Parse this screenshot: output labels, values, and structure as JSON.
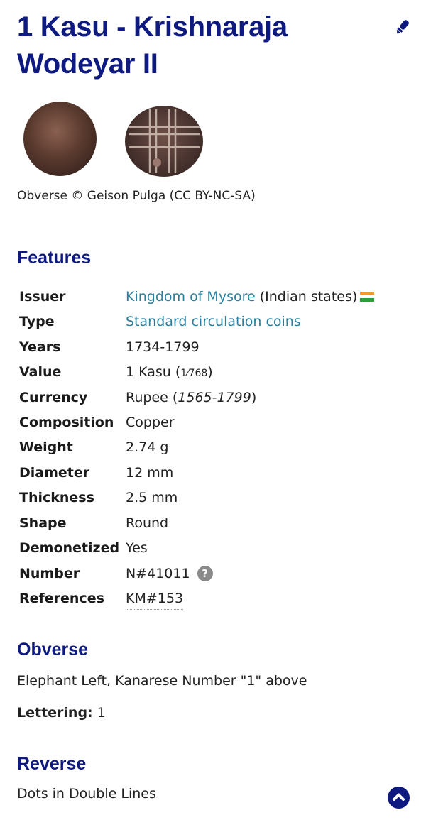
{
  "title": "1 Kasu - Krishnaraja Wodeyar II",
  "image_caption": "Obverse © Geison Pulga (CC BY-NC-SA)",
  "features": {
    "heading": "Features",
    "issuer": {
      "label": "Issuer",
      "link": "Kingdom of Mysore",
      "suffix": " (Indian states)"
    },
    "type": {
      "label": "Type",
      "link": "Standard circulation coins"
    },
    "years": {
      "label": "Years",
      "value": "1734-1799"
    },
    "value": {
      "label": "Value",
      "main": "1 Kasu (",
      "fraction": "1⁄768",
      "close": ")"
    },
    "currency": {
      "label": "Currency",
      "main": "Rupee (",
      "period": "1565-1799",
      "close": ")"
    },
    "composition": {
      "label": "Composition",
      "value": "Copper"
    },
    "weight": {
      "label": "Weight",
      "value": "2.74 g"
    },
    "diameter": {
      "label": "Diameter",
      "value": "12 mm"
    },
    "thickness": {
      "label": "Thickness",
      "value": "2.5 mm"
    },
    "shape": {
      "label": "Shape",
      "value": "Round"
    },
    "demonetized": {
      "label": "Demonetized",
      "value": "Yes"
    },
    "number": {
      "label": "Number",
      "value": "N#41011",
      "help": "?"
    },
    "references": {
      "label": "References",
      "value": "KM#153"
    }
  },
  "obverse": {
    "heading": "Obverse",
    "description": "Elephant Left, Kanarese Number \"1\" above",
    "lettering_label": "Lettering:",
    "lettering_value": " 1"
  },
  "reverse": {
    "heading": "Reverse",
    "description": "Dots in Double Lines"
  },
  "colors": {
    "heading": "#0f1a80",
    "link": "#2a7f9e"
  }
}
